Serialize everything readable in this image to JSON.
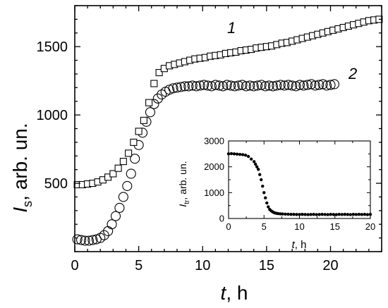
{
  "chart_data": [
    {
      "type": "scatter",
      "xlabel": {
        "symbol": "t",
        "rest": ", h"
      },
      "ylabel": {
        "symbol": "I",
        "sub": "s",
        "rest": ", arb. un."
      },
      "xlim": [
        0,
        24
      ],
      "ylim": [
        0,
        1800
      ],
      "xticks": [
        0,
        5,
        10,
        15,
        20
      ],
      "yticks": [
        500,
        1000,
        1500
      ],
      "grid": false,
      "curve_labels": [
        "1",
        "2"
      ],
      "series": [
        {
          "marker": "square",
          "x": [
            0.2,
            0.6,
            1.0,
            1.4,
            1.8,
            2.2,
            2.6,
            3.0,
            3.4,
            3.8,
            4.2,
            4.6,
            5.0,
            5.4,
            5.8,
            6.2,
            6.6,
            7.0,
            7.4,
            7.8,
            8.2,
            8.6,
            9.0,
            9.4,
            9.8,
            10.2,
            10.6,
            11.0,
            11.4,
            11.8,
            12.2,
            12.6,
            13.0,
            13.4,
            13.8,
            14.2,
            14.6,
            15.0,
            15.4,
            15.8,
            16.2,
            16.6,
            17.0,
            17.4,
            17.8,
            18.2,
            18.6,
            19.0,
            19.4,
            19.8,
            20.2,
            20.6,
            21.0,
            21.4,
            21.8,
            22.2,
            22.6,
            23.0,
            23.4,
            23.8
          ],
          "y": [
            490,
            490,
            495,
            500,
            510,
            525,
            545,
            570,
            610,
            660,
            720,
            800,
            880,
            960,
            1090,
            1230,
            1310,
            1340,
            1360,
            1370,
            1380,
            1390,
            1400,
            1410,
            1415,
            1420,
            1430,
            1435,
            1440,
            1450,
            1455,
            1460,
            1470,
            1475,
            1480,
            1490,
            1495,
            1500,
            1505,
            1515,
            1525,
            1530,
            1540,
            1550,
            1560,
            1570,
            1580,
            1590,
            1600,
            1610,
            1620,
            1630,
            1640,
            1650,
            1660,
            1670,
            1680,
            1690,
            1695,
            1700
          ]
        },
        {
          "marker": "circle",
          "x": [
            0.2,
            0.5,
            0.8,
            1.1,
            1.4,
            1.7,
            2.0,
            2.3,
            2.6,
            2.9,
            3.2,
            3.5,
            3.8,
            4.1,
            4.4,
            4.7,
            5.0,
            5.3,
            5.6,
            5.9,
            6.2,
            6.5,
            6.8,
            7.1,
            7.4,
            7.7,
            8.0,
            8.3,
            8.6,
            8.9,
            9.2,
            9.5,
            9.8,
            10.1,
            10.4,
            10.7,
            11.0,
            11.3,
            11.6,
            11.9,
            12.2,
            12.5,
            12.8,
            13.1,
            13.4,
            13.7,
            14.0,
            14.3,
            14.6,
            14.9,
            15.2,
            15.5,
            15.8,
            16.1,
            16.4,
            16.7,
            17.0,
            17.3,
            17.6,
            17.9,
            18.2,
            18.5,
            18.8,
            19.1,
            19.4,
            19.7,
            20.0,
            20.3
          ],
          "y": [
            90,
            85,
            80,
            80,
            85,
            90,
            100,
            120,
            150,
            200,
            260,
            320,
            400,
            480,
            570,
            680,
            780,
            870,
            950,
            1020,
            1080,
            1120,
            1150,
            1170,
            1185,
            1195,
            1200,
            1205,
            1210,
            1210,
            1215,
            1210,
            1215,
            1220,
            1215,
            1210,
            1220,
            1215,
            1210,
            1220,
            1215,
            1210,
            1215,
            1220,
            1210,
            1215,
            1210,
            1215,
            1220,
            1210,
            1215,
            1210,
            1215,
            1220,
            1215,
            1220,
            1215,
            1210,
            1220,
            1215,
            1220,
            1225,
            1215,
            1220,
            1225,
            1215,
            1220,
            1225
          ]
        }
      ]
    },
    {
      "type": "scatter",
      "inset": true,
      "xlabel": {
        "symbol": "t",
        "rest": ", h"
      },
      "ylabel": {
        "symbol": "I",
        "sub": "tr",
        "rest": ", arb. un."
      },
      "xlim": [
        0,
        20
      ],
      "ylim": [
        0,
        3000
      ],
      "xticks": [
        0,
        5,
        10,
        15,
        20
      ],
      "yticks": [
        0,
        1000,
        2000,
        3000
      ],
      "grid": false,
      "series": [
        {
          "marker": "filled-circle",
          "x": [
            0.0,
            0.4,
            0.8,
            1.2,
            1.6,
            2.0,
            2.4,
            2.8,
            3.2,
            3.6,
            3.8,
            4.0,
            4.2,
            4.4,
            4.6,
            4.8,
            5.0,
            5.2,
            5.4,
            5.6,
            5.8,
            6.0,
            6.2,
            6.4,
            6.6,
            6.8,
            7.0,
            7.3,
            7.6,
            8.0,
            8.4,
            8.8,
            9.2,
            9.6,
            10.0,
            10.4,
            10.8,
            11.2,
            11.6,
            12.0,
            12.4,
            12.8,
            13.2,
            13.6,
            14.0,
            14.4,
            14.8,
            15.2,
            15.6,
            16.0,
            16.4,
            16.8,
            17.2,
            17.6,
            18.0,
            18.4,
            18.8,
            19.2,
            19.6,
            20.0
          ],
          "y": [
            2500,
            2510,
            2500,
            2490,
            2480,
            2470,
            2450,
            2400,
            2300,
            2200,
            2100,
            2000,
            1900,
            1700,
            1500,
            1250,
            1000,
            800,
            600,
            450,
            350,
            300,
            260,
            230,
            210,
            200,
            190,
            180,
            175,
            170,
            165,
            160,
            160,
            155,
            155,
            160,
            155,
            150,
            155,
            160,
            150,
            155,
            160,
            155,
            150,
            160,
            155,
            150,
            160,
            155,
            160,
            155,
            150,
            160,
            155,
            160,
            155,
            160,
            150,
            160
          ]
        }
      ]
    }
  ]
}
